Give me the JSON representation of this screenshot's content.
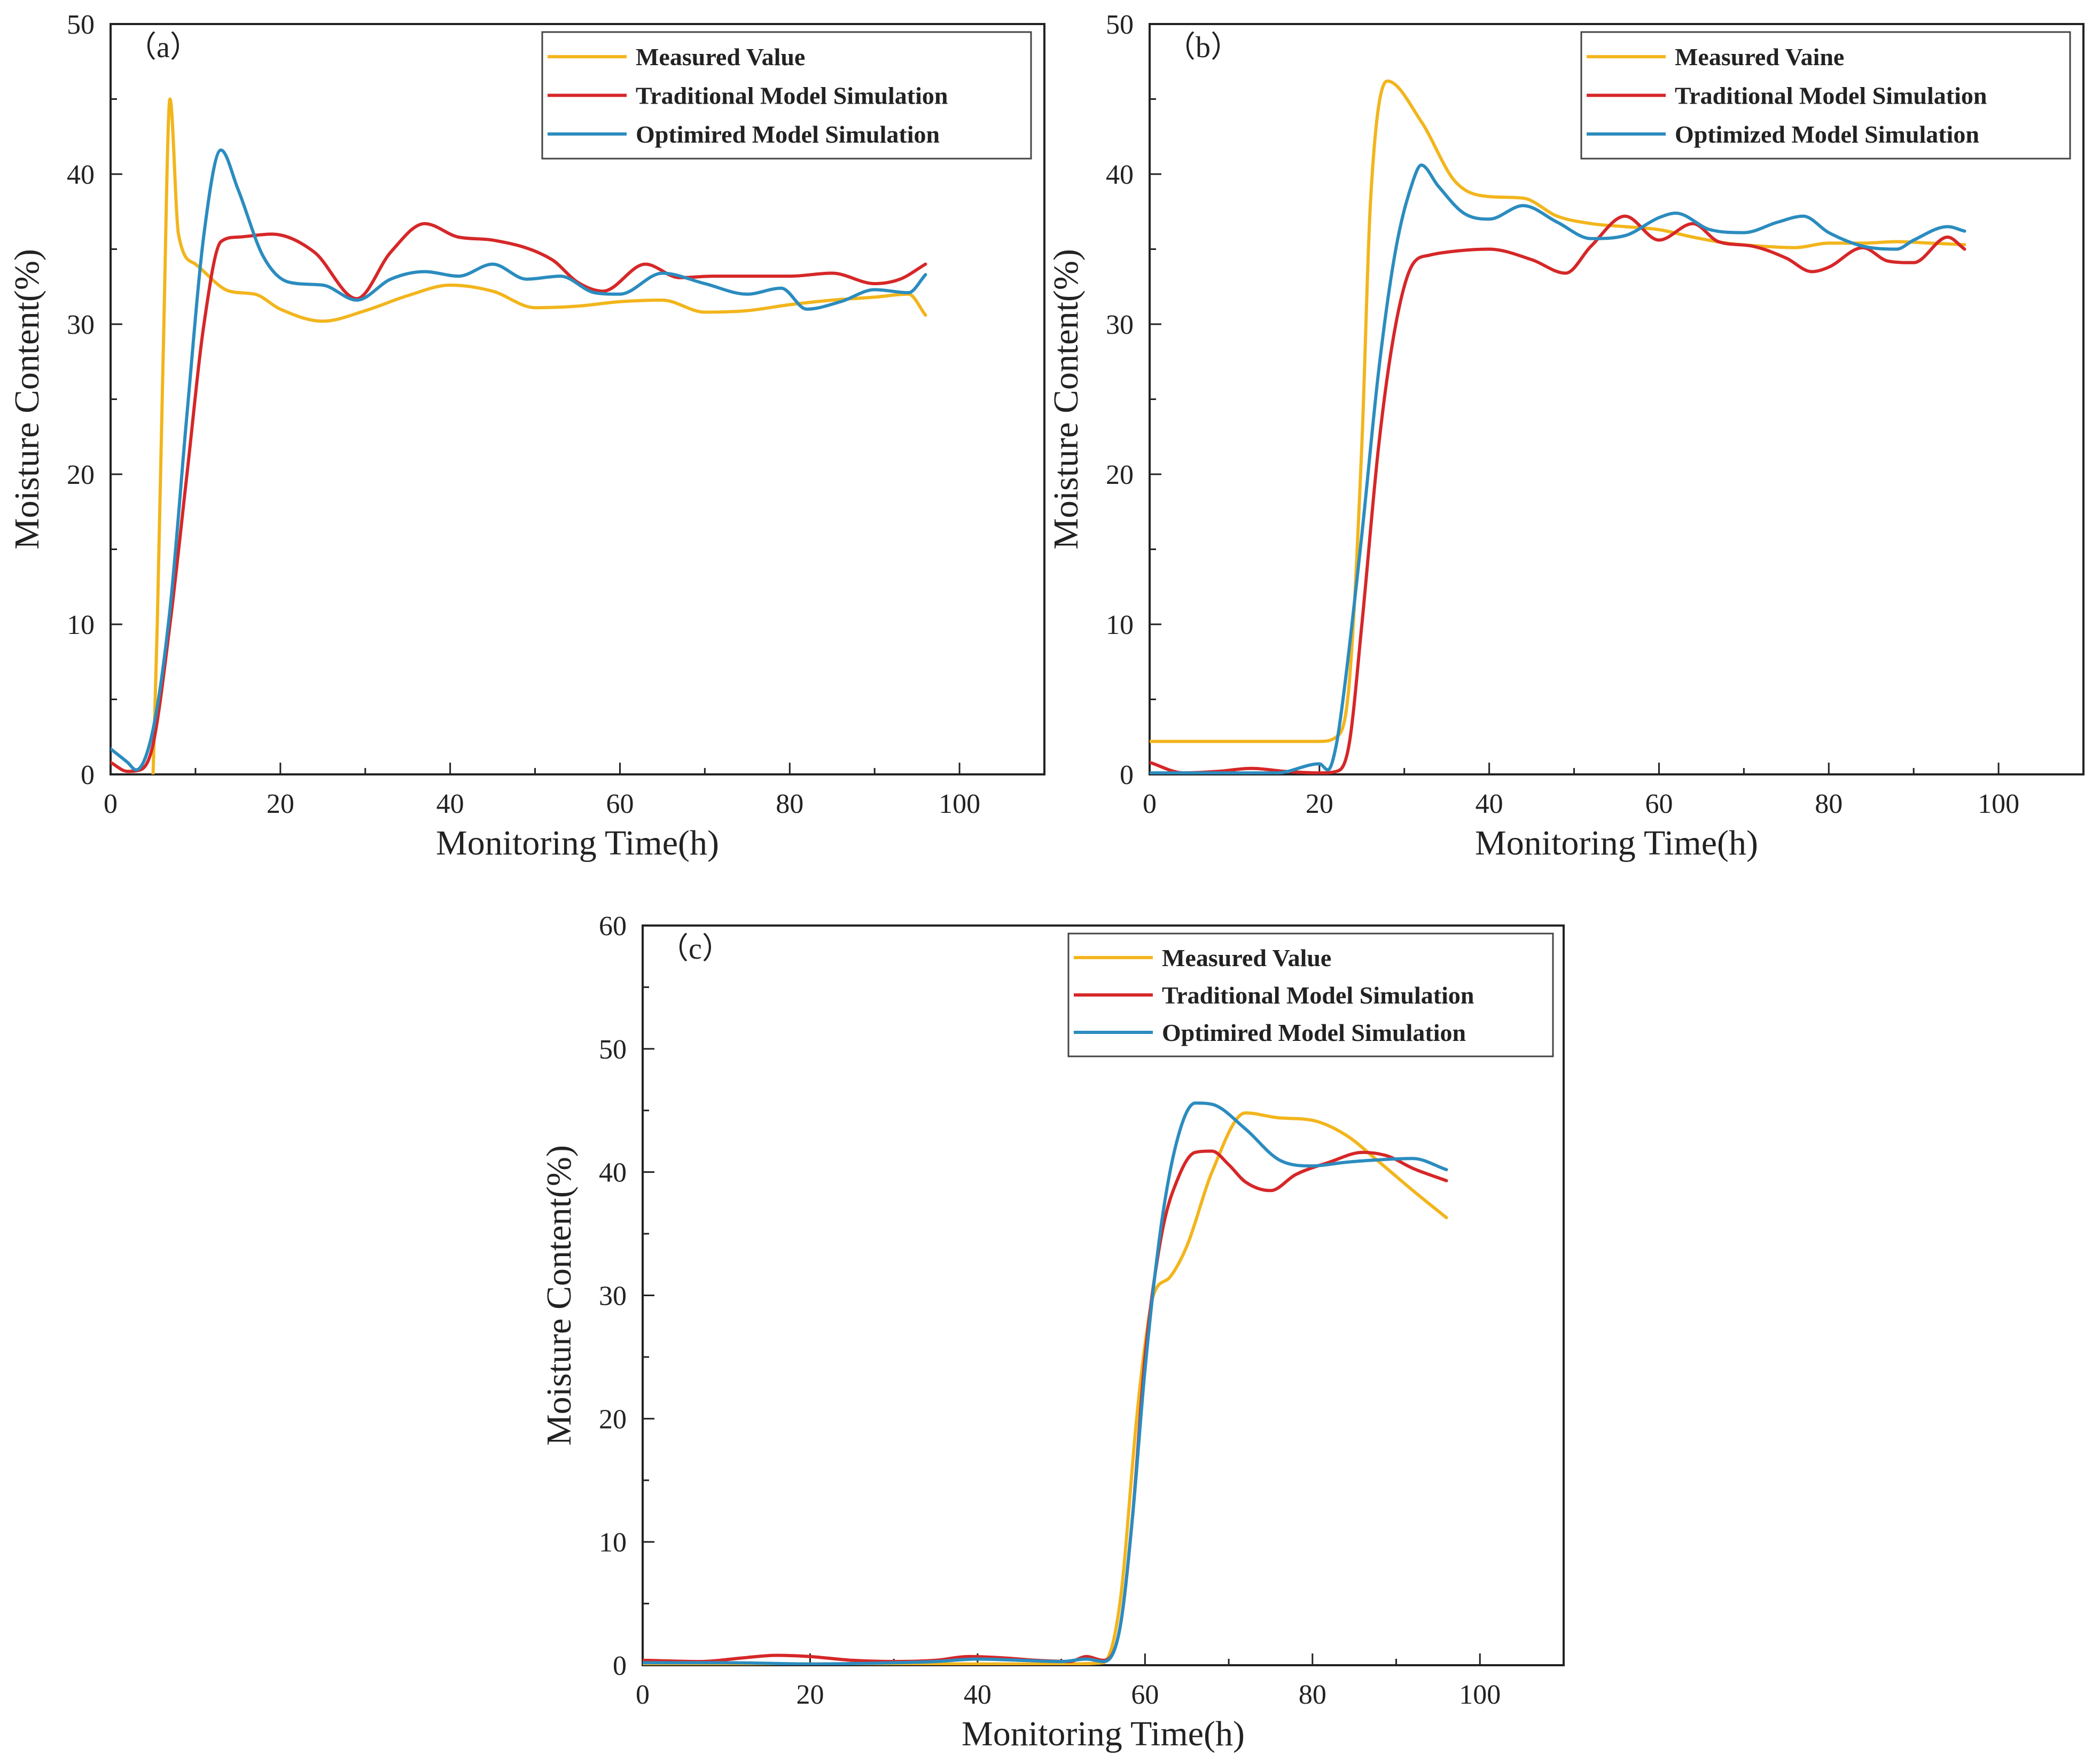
{
  "colors": {
    "measured": "#f2b51c",
    "traditional": "#d62728",
    "optimized": "#2b8cbf",
    "axis": "#222222"
  },
  "chart_data": [
    {
      "type": "line",
      "panel_label": "（a）",
      "xlabel": "Monitoring Time(h)",
      "ylabel": "Moisture Content(%)",
      "xlim": [
        0,
        110
      ],
      "ylim": [
        0,
        50
      ],
      "xticks": [
        0,
        20,
        40,
        60,
        80,
        100
      ],
      "yticks": [
        0,
        10,
        20,
        30,
        40,
        50
      ],
      "grid": false,
      "legend_position": "top-right",
      "series": [
        {
          "name": "Measured Value",
          "color_key": "measured",
          "x": [
            5,
            5.5,
            6.2,
            7,
            8,
            10,
            14,
            17,
            20,
            25,
            30,
            35,
            40,
            45,
            50,
            55,
            60,
            65,
            70,
            75,
            80,
            85,
            90,
            94,
            96
          ],
          "y": [
            0,
            10,
            28,
            45,
            36,
            34,
            32.2,
            32,
            31,
            30.2,
            30.9,
            31.9,
            32.6,
            32.2,
            31.1,
            31.2,
            31.5,
            31.6,
            30.8,
            30.9,
            31.3,
            31.6,
            31.8,
            32,
            30.6
          ]
        },
        {
          "name": "Traditional Model Simulation",
          "color_key": "traditional",
          "x": [
            0,
            2,
            3.5,
            5,
            7,
            9,
            11,
            13,
            15,
            19,
            24,
            29,
            33,
            37,
            41,
            45,
            52,
            55,
            58,
            63,
            67,
            71,
            75,
            80,
            85,
            90,
            93,
            96
          ],
          "y": [
            0.8,
            0.2,
            0.3,
            2,
            10,
            20,
            30,
            35.5,
            35.8,
            36,
            34.8,
            31.7,
            34.8,
            36.7,
            35.8,
            35.6,
            34.3,
            32.8,
            32.2,
            34,
            33.1,
            33.2,
            33.2,
            33.2,
            33.4,
            32.7,
            33,
            34
          ]
        },
        {
          "name": "Optimired Model Simulation",
          "color_key": "optimized",
          "x": [
            0,
            2,
            3,
            5,
            7,
            9,
            11,
            13,
            15,
            18,
            21,
            25,
            29,
            33,
            37,
            41,
            45,
            49,
            53,
            57,
            60,
            65,
            70,
            75,
            79,
            82,
            86,
            90,
            94,
            96
          ],
          "y": [
            1.7,
            0.8,
            0.3,
            3,
            11,
            24,
            36,
            41.6,
            39,
            34.5,
            32.8,
            32.6,
            31.6,
            33,
            33.5,
            33.2,
            34,
            33,
            33.2,
            32.1,
            32,
            33.4,
            32.7,
            32,
            32.4,
            31,
            31.5,
            32.3,
            32.1,
            33.3
          ]
        }
      ],
      "legend_entries": [
        "Measured Value",
        "Traditional Model Simulation",
        "Optimired Model Simulation"
      ]
    },
    {
      "type": "line",
      "panel_label": "（b）",
      "xlabel": "Monitoring Time(h)",
      "ylabel": "Moisture Content(%)",
      "xlim": [
        0,
        110
      ],
      "ylim": [
        0,
        50
      ],
      "xticks": [
        0,
        20,
        40,
        60,
        80,
        100
      ],
      "yticks": [
        0,
        10,
        20,
        30,
        40,
        50
      ],
      "grid": false,
      "legend_position": "top-right",
      "series": [
        {
          "name": "Measured Vaine",
          "color_key": "measured",
          "x": [
            0,
            20,
            22,
            23.5,
            25,
            26,
            28,
            32,
            36,
            40,
            44,
            48,
            52,
            56,
            60,
            64,
            68,
            72,
            76,
            80,
            84,
            88,
            92,
            96
          ],
          "y": [
            2.2,
            2.2,
            2.5,
            6,
            22,
            38,
            46.2,
            43.5,
            39.5,
            38.5,
            38.4,
            37.2,
            36.7,
            36.5,
            36.3,
            35.8,
            35.4,
            35.2,
            35.1,
            35.4,
            35.4,
            35.5,
            35.4,
            35.3
          ]
        },
        {
          "name": "Traditional Model Simulation",
          "color_key": "traditional",
          "x": [
            0,
            4,
            8,
            12,
            16,
            20,
            22,
            23.5,
            25,
            27,
            29,
            31,
            33,
            35,
            40,
            45,
            49,
            52,
            56,
            60,
            64,
            67,
            71,
            75,
            78,
            80,
            84,
            87,
            90,
            94,
            96
          ],
          "y": [
            0.8,
            0.1,
            0.2,
            0.4,
            0.2,
            0.1,
            0.2,
            2,
            10,
            22,
            30,
            34,
            34.6,
            34.8,
            35,
            34.3,
            33.4,
            35.2,
            37.2,
            35.6,
            36.7,
            35.5,
            35.2,
            34.4,
            33.5,
            33.8,
            35.1,
            34.2,
            34.1,
            35.8,
            35
          ]
        },
        {
          "name": "Optimized Model Simulation",
          "color_key": "optimized",
          "x": [
            0,
            8,
            15,
            20,
            21,
            22,
            23,
            25,
            27,
            29,
            31,
            32,
            34,
            37,
            40,
            44,
            48,
            52,
            56,
            60,
            62,
            66,
            70,
            74,
            77,
            80,
            84,
            88,
            90,
            94,
            96
          ],
          "y": [
            0.1,
            0.1,
            0.1,
            0.7,
            0.3,
            2,
            6,
            16,
            27,
            35,
            39.5,
            40.6,
            39.2,
            37.4,
            37,
            37.9,
            36.8,
            35.7,
            35.9,
            37.1,
            37.4,
            36.3,
            36.1,
            36.8,
            37.2,
            36.1,
            35.2,
            35,
            35.6,
            36.5,
            36.2
          ]
        }
      ],
      "legend_entries": [
        "Measured Vaine",
        "Traditional Model Simulation",
        "Optimized Model Simulation"
      ]
    },
    {
      "type": "line",
      "panel_label": "（c）",
      "xlabel": "Monitoring Time(h)",
      "ylabel": "Moisture Content(%)",
      "xlim": [
        0,
        110
      ],
      "ylim": [
        0,
        60
      ],
      "xticks": [
        0,
        20,
        40,
        60,
        80,
        100
      ],
      "yticks": [
        0,
        10,
        20,
        30,
        40,
        50,
        60
      ],
      "grid": false,
      "legend_position": "top-right",
      "series": [
        {
          "name": "Measured Value",
          "color_key": "measured",
          "x": [
            0,
            10,
            20,
            30,
            40,
            50,
            55,
            57,
            59,
            60,
            61,
            63,
            65,
            68,
            72,
            76,
            80,
            84,
            88,
            92,
            96
          ],
          "y": [
            0.1,
            0.1,
            0.1,
            0.1,
            0.1,
            0.1,
            0.2,
            5,
            20,
            26,
            30,
            31.5,
            34,
            40,
            44.8,
            44.4,
            44.2,
            43,
            40.8,
            38.5,
            36.3
          ]
        },
        {
          "name": "Traditional Model Simulation",
          "color_key": "traditional",
          "x": [
            0,
            7,
            12,
            16,
            20,
            25,
            30,
            35,
            39,
            43,
            47,
            51,
            53,
            55,
            57,
            58.5,
            60,
            62,
            64,
            66,
            68,
            70,
            72,
            75,
            78,
            82,
            86,
            89,
            92,
            96
          ],
          "y": [
            0.4,
            0.3,
            0.6,
            0.8,
            0.7,
            0.4,
            0.3,
            0.4,
            0.7,
            0.6,
            0.4,
            0.3,
            0.7,
            0.4,
            3,
            12,
            25,
            35,
            39.6,
            41.6,
            41.7,
            40.6,
            39.2,
            38.5,
            39.8,
            40.8,
            41.6,
            41.3,
            40.3,
            39.3
          ]
        },
        {
          "name": "Optimired Model Simulation",
          "color_key": "optimized",
          "x": [
            0,
            10,
            20,
            30,
            35,
            40,
            45,
            50,
            53,
            55,
            57,
            58.5,
            60,
            62,
            64,
            66,
            68,
            72,
            76,
            80,
            84,
            88,
            92,
            96
          ],
          "y": [
            0.2,
            0.2,
            0.1,
            0.2,
            0.3,
            0.5,
            0.4,
            0.3,
            0.5,
            0.3,
            3,
            12,
            24,
            36,
            43,
            45.6,
            45.5,
            43.5,
            41,
            40.5,
            40.8,
            41,
            41.1,
            40.2
          ]
        }
      ],
      "legend_entries": [
        "Measured Value",
        "Traditional Model Simulation",
        "Optimired Model Simulation"
      ]
    }
  ]
}
